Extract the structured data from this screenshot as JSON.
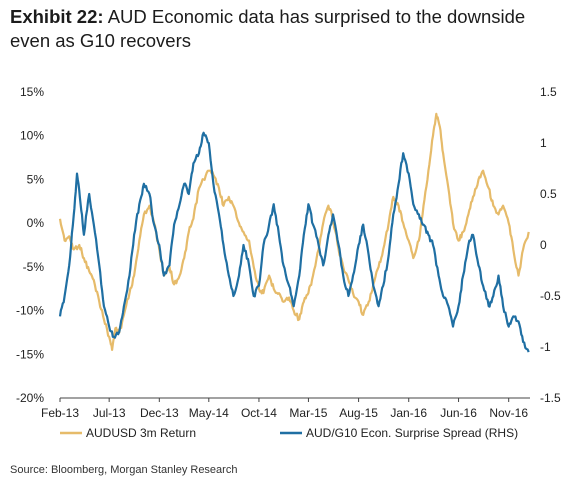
{
  "header": {
    "exhibit_label": "Exhibit 22:",
    "title_text": "AUD Economic data has surprised to the downside even as G10 recovers"
  },
  "footer": {
    "source": "Source: Bloomberg, Morgan Stanley Research"
  },
  "colors": {
    "audusd": "#e6bb6a",
    "surprise": "#1f6fa3",
    "axis": "#444444"
  },
  "chart_data": {
    "type": "line",
    "title": "",
    "x_tick_labels": [
      "Feb-13",
      "Jul-13",
      "Dec-13",
      "May-14",
      "Oct-14",
      "Mar-15",
      "Aug-15",
      "Jan-16",
      "Jun-16",
      "Nov-16"
    ],
    "x_tick_dates": [
      "2013-02-01",
      "2013-07-01",
      "2013-12-01",
      "2014-05-01",
      "2014-10-01",
      "2015-03-01",
      "2015-08-01",
      "2016-01-01",
      "2016-06-01",
      "2016-11-01"
    ],
    "xlim": [
      "2013-02-01",
      "2017-01-05"
    ],
    "y_left": {
      "ylim": [
        -20,
        15
      ],
      "ticks": [
        15,
        10,
        5,
        0,
        -5,
        -10,
        -15,
        -20
      ],
      "tick_labels": [
        "15%",
        "10%",
        "5%",
        "0%",
        "-5%",
        "-10%",
        "-15%",
        "-20%"
      ]
    },
    "y_right": {
      "ylim": [
        -1.5,
        1.5
      ],
      "ticks": [
        1.5,
        1,
        0.5,
        0,
        -0.5,
        -1,
        -1.5
      ],
      "tick_labels": [
        "1.5",
        "1",
        "0.5",
        "0",
        "-0.5",
        "-1",
        "-1.5"
      ]
    },
    "grid": false,
    "legend_position": "bottom",
    "series": [
      {
        "name": "AUDUSD 3m Return",
        "axis": "left",
        "color": "#e6bb6a",
        "points": [
          [
            "2013-02-01",
            0.5
          ],
          [
            "2013-02-15",
            -2
          ],
          [
            "2013-03-01",
            -1.5
          ],
          [
            "2013-03-15",
            -3
          ],
          [
            "2013-04-01",
            -2.5
          ],
          [
            "2013-04-15",
            -4
          ],
          [
            "2013-05-01",
            -5.5
          ],
          [
            "2013-05-15",
            -6.5
          ],
          [
            "2013-06-01",
            -9
          ],
          [
            "2013-06-15",
            -11
          ],
          [
            "2013-07-01",
            -13
          ],
          [
            "2013-07-10",
            -14.5
          ],
          [
            "2013-07-20",
            -12
          ],
          [
            "2013-08-01",
            -12.5
          ],
          [
            "2013-08-15",
            -10.5
          ],
          [
            "2013-09-01",
            -8
          ],
          [
            "2013-09-15",
            -6
          ],
          [
            "2013-10-01",
            -2
          ],
          [
            "2013-10-15",
            1
          ],
          [
            "2013-11-01",
            2
          ],
          [
            "2013-11-15",
            0
          ],
          [
            "2013-12-01",
            -3
          ],
          [
            "2013-12-15",
            -6
          ],
          [
            "2014-01-01",
            -5
          ],
          [
            "2014-01-15",
            -7
          ],
          [
            "2014-02-01",
            -6
          ],
          [
            "2014-02-15",
            -4
          ],
          [
            "2014-03-01",
            -1
          ],
          [
            "2014-03-15",
            0.5
          ],
          [
            "2014-04-01",
            4
          ],
          [
            "2014-04-15",
            5
          ],
          [
            "2014-05-01",
            6
          ],
          [
            "2014-05-15",
            5.5
          ],
          [
            "2014-06-01",
            4
          ],
          [
            "2014-06-15",
            2
          ],
          [
            "2014-07-01",
            3
          ],
          [
            "2014-07-15",
            2
          ],
          [
            "2014-08-01",
            0
          ],
          [
            "2014-08-15",
            -1
          ],
          [
            "2014-09-01",
            -2
          ],
          [
            "2014-09-15",
            -5
          ],
          [
            "2014-10-01",
            -7.5
          ],
          [
            "2014-10-15",
            -8
          ],
          [
            "2014-11-01",
            -6
          ],
          [
            "2014-11-15",
            -7.5
          ],
          [
            "2014-12-01",
            -8
          ],
          [
            "2014-12-15",
            -9
          ],
          [
            "2015-01-01",
            -8.5
          ],
          [
            "2015-01-15",
            -10
          ],
          [
            "2015-02-01",
            -11
          ],
          [
            "2015-02-15",
            -9
          ],
          [
            "2015-03-01",
            -8
          ],
          [
            "2015-03-15",
            -6
          ],
          [
            "2015-04-01",
            -3
          ],
          [
            "2015-04-15",
            0
          ],
          [
            "2015-05-01",
            2
          ],
          [
            "2015-05-15",
            0.5
          ],
          [
            "2015-06-01",
            -3
          ],
          [
            "2015-06-15",
            -5
          ],
          [
            "2015-07-01",
            -6.5
          ],
          [
            "2015-07-15",
            -8
          ],
          [
            "2015-08-01",
            -9
          ],
          [
            "2015-08-15",
            -10.5
          ],
          [
            "2015-09-01",
            -9
          ],
          [
            "2015-09-15",
            -7
          ],
          [
            "2015-10-01",
            -5
          ],
          [
            "2015-10-15",
            -3
          ],
          [
            "2015-11-01",
            0
          ],
          [
            "2015-11-15",
            3
          ],
          [
            "2015-12-01",
            2
          ],
          [
            "2015-12-15",
            0
          ],
          [
            "2016-01-01",
            -2
          ],
          [
            "2016-01-15",
            -4
          ],
          [
            "2016-02-01",
            -2
          ],
          [
            "2016-02-15",
            2
          ],
          [
            "2016-03-01",
            6
          ],
          [
            "2016-03-15",
            10
          ],
          [
            "2016-03-25",
            12.5
          ],
          [
            "2016-04-05",
            11
          ],
          [
            "2016-04-15",
            8
          ],
          [
            "2016-05-01",
            4
          ],
          [
            "2016-05-15",
            0
          ],
          [
            "2016-06-01",
            -2
          ],
          [
            "2016-06-15",
            -1
          ],
          [
            "2016-07-01",
            1
          ],
          [
            "2016-07-15",
            3
          ],
          [
            "2016-08-01",
            5
          ],
          [
            "2016-08-15",
            6
          ],
          [
            "2016-09-01",
            4
          ],
          [
            "2016-09-15",
            2
          ],
          [
            "2016-10-01",
            1
          ],
          [
            "2016-10-15",
            2
          ],
          [
            "2016-11-01",
            0
          ],
          [
            "2016-11-15",
            -3
          ],
          [
            "2016-12-01",
            -6
          ],
          [
            "2016-12-15",
            -3
          ],
          [
            "2017-01-01",
            -1
          ]
        ]
      },
      {
        "name": "AUD/G10 Econ. Surprise Spread (RHS)",
        "axis": "right",
        "color": "#1f6fa3",
        "points": [
          [
            "2013-02-01",
            -0.7
          ],
          [
            "2013-02-15",
            -0.5
          ],
          [
            "2013-03-01",
            -0.2
          ],
          [
            "2013-03-15",
            0.3
          ],
          [
            "2013-03-25",
            0.7
          ],
          [
            "2013-04-05",
            0.4
          ],
          [
            "2013-04-15",
            0.1
          ],
          [
            "2013-05-01",
            0.5
          ],
          [
            "2013-05-15",
            0.2
          ],
          [
            "2013-06-01",
            -0.2
          ],
          [
            "2013-06-15",
            -0.6
          ],
          [
            "2013-07-01",
            -0.8
          ],
          [
            "2013-07-15",
            -0.9
          ],
          [
            "2013-08-01",
            -0.85
          ],
          [
            "2013-08-15",
            -0.6
          ],
          [
            "2013-09-01",
            -0.3
          ],
          [
            "2013-09-15",
            0.1
          ],
          [
            "2013-10-01",
            0.4
          ],
          [
            "2013-10-15",
            0.6
          ],
          [
            "2013-11-01",
            0.5
          ],
          [
            "2013-11-15",
            0.2
          ],
          [
            "2013-12-01",
            0
          ],
          [
            "2013-12-15",
            -0.3
          ],
          [
            "2014-01-01",
            -0.2
          ],
          [
            "2014-01-15",
            0.2
          ],
          [
            "2014-02-01",
            0.4
          ],
          [
            "2014-02-15",
            0.6
          ],
          [
            "2014-03-01",
            0.5
          ],
          [
            "2014-03-15",
            0.8
          ],
          [
            "2014-04-01",
            0.9
          ],
          [
            "2014-04-15",
            1.1
          ],
          [
            "2014-05-01",
            1.0
          ],
          [
            "2014-05-15",
            0.6
          ],
          [
            "2014-06-01",
            0.3
          ],
          [
            "2014-06-15",
            0.0
          ],
          [
            "2014-07-01",
            -0.3
          ],
          [
            "2014-07-15",
            -0.5
          ],
          [
            "2014-08-01",
            -0.3
          ],
          [
            "2014-08-15",
            0.0
          ],
          [
            "2014-09-01",
            -0.2
          ],
          [
            "2014-09-15",
            -0.5
          ],
          [
            "2014-10-01",
            -0.4
          ],
          [
            "2014-10-15",
            0.0
          ],
          [
            "2014-11-01",
            0.2
          ],
          [
            "2014-11-15",
            0.4
          ],
          [
            "2014-12-01",
            0.1
          ],
          [
            "2014-12-15",
            -0.2
          ],
          [
            "2015-01-01",
            -0.4
          ],
          [
            "2015-01-15",
            -0.6
          ],
          [
            "2015-02-01",
            -0.3
          ],
          [
            "2015-02-15",
            0.1
          ],
          [
            "2015-03-01",
            0.4
          ],
          [
            "2015-03-15",
            0.2
          ],
          [
            "2015-04-01",
            0.0
          ],
          [
            "2015-04-15",
            -0.2
          ],
          [
            "2015-05-01",
            0.1
          ],
          [
            "2015-05-15",
            0.3
          ],
          [
            "2015-06-01",
            0.0
          ],
          [
            "2015-06-15",
            -0.3
          ],
          [
            "2015-07-01",
            -0.5
          ],
          [
            "2015-07-15",
            -0.3
          ],
          [
            "2015-08-01",
            0.0
          ],
          [
            "2015-08-15",
            0.2
          ],
          [
            "2015-09-01",
            -0.1
          ],
          [
            "2015-09-15",
            -0.4
          ],
          [
            "2015-10-01",
            -0.6
          ],
          [
            "2015-10-15",
            -0.4
          ],
          [
            "2015-11-01",
            -0.1
          ],
          [
            "2015-11-15",
            0.3
          ],
          [
            "2015-12-01",
            0.6
          ],
          [
            "2015-12-15",
            0.9
          ],
          [
            "2016-01-01",
            0.7
          ],
          [
            "2016-01-15",
            0.4
          ],
          [
            "2016-02-01",
            0.3
          ],
          [
            "2016-02-15",
            0.2
          ],
          [
            "2016-03-01",
            0.1
          ],
          [
            "2016-03-15",
            0.0
          ],
          [
            "2016-04-01",
            -0.3
          ],
          [
            "2016-04-15",
            -0.5
          ],
          [
            "2016-05-01",
            -0.6
          ],
          [
            "2016-05-15",
            -0.8
          ],
          [
            "2016-06-01",
            -0.6
          ],
          [
            "2016-06-15",
            -0.3
          ],
          [
            "2016-07-01",
            0.0
          ],
          [
            "2016-07-15",
            0.1
          ],
          [
            "2016-08-01",
            -0.2
          ],
          [
            "2016-08-15",
            -0.4
          ],
          [
            "2016-09-01",
            -0.6
          ],
          [
            "2016-09-15",
            -0.5
          ],
          [
            "2016-10-01",
            -0.3
          ],
          [
            "2016-10-15",
            -0.6
          ],
          [
            "2016-11-01",
            -0.8
          ],
          [
            "2016-11-15",
            -0.7
          ],
          [
            "2016-12-01",
            -0.75
          ],
          [
            "2016-12-15",
            -0.95
          ],
          [
            "2017-01-01",
            -1.05
          ]
        ]
      }
    ]
  }
}
